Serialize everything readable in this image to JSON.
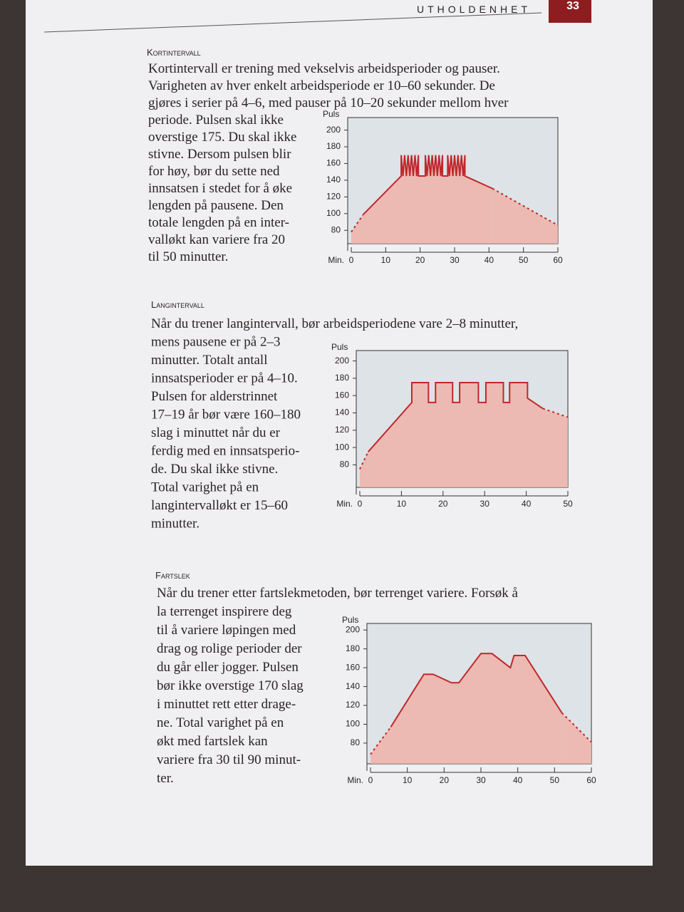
{
  "header": {
    "section": "UTHOLDENHET",
    "page": "33"
  },
  "sections": [
    {
      "heading": "Kortintervall",
      "full_lines": [
        "Kortintervall er trening med vekselvis arbeidsperioder og pauser.",
        "Varigheten av hver enkelt arbeidsperiode er 10–60 sekunder. De",
        "gjøres i serier på 4–6, med pauser på 10–20 sekunder mellom hver"
      ],
      "side_lines": [
        "periode. Pulsen skal ikke",
        "overstige 175. Du skal ikke",
        "stivne. Dersom pulsen blir",
        "for høy, bør du sette ned",
        "innsatsen i stedet for å øke",
        "lengden på pausene. Den",
        "totale lengden på en inter-",
        "valløkt kan variere fra 20",
        "til 50 minutter."
      ],
      "chart": {
        "type": "line",
        "y_label": "Puls",
        "x_label": "Min.",
        "xlim": [
          0,
          60
        ],
        "ylim": [
          64,
          215
        ],
        "xticks": [
          0,
          10,
          20,
          30,
          40,
          50,
          60
        ],
        "yticks": [
          80,
          100,
          120,
          140,
          160,
          180,
          200
        ],
        "fill": "#eeb3a8",
        "background": "#dde3e6",
        "series": [
          {
            "color": "#c0272d",
            "dashed": true,
            "x": [
              0,
              3.5
            ],
            "values": [
              78,
              99
            ]
          },
          {
            "color": "#c0272d",
            "dashed": false,
            "x": [
              3.5,
              14.5,
              14.5,
              15,
              15.5,
              16,
              16.5,
              17,
              17.5,
              18,
              18.5,
              19,
              19.5,
              19.5,
              21.5,
              21.5,
              22,
              22.5,
              23,
              23.5,
              24,
              24.5,
              25,
              25.5,
              26,
              26.5,
              26.5,
              28,
              28,
              28.5,
              29,
              29.5,
              30,
              30.5,
              31,
              31.5,
              32,
              32.5,
              33,
              33,
              41
            ],
            "values": [
              99,
              145,
              170,
              145,
              170,
              145,
              170,
              145,
              170,
              145,
              170,
              145,
              170,
              145,
              145,
              170,
              145,
              170,
              145,
              170,
              145,
              170,
              145,
              170,
              145,
              170,
              145,
              145,
              170,
              145,
              170,
              145,
              170,
              145,
              170,
              145,
              170,
              145,
              170,
              145,
              130
            ]
          },
          {
            "color": "#c0272d",
            "dashed": true,
            "x": [
              41,
              60
            ],
            "values": [
              130,
              86
            ]
          }
        ]
      }
    },
    {
      "heading": "Langintervall",
      "full_lines": [
        "Når du trener langintervall, bør arbeidsperiodene vare 2–8 minutter,"
      ],
      "side_lines": [
        "mens pausene er på 2–3",
        "minutter. Totalt antall",
        "innsatsperioder er på 4–10.",
        "Pulsen for alderstrinnet",
        "17–19 år bør være 160–180",
        "slag i minuttet når du er",
        "ferdig med en innsatsperio-",
        "de. Du skal ikke stivne.",
        "Total varighet på en",
        "langintervalløkt er 15–60",
        "minutter."
      ],
      "chart": {
        "type": "line",
        "y_label": "Puls",
        "x_label": "Min.",
        "xlim": [
          0,
          50
        ],
        "ylim": [
          54,
          212
        ],
        "xticks": [
          0,
          10,
          20,
          30,
          40,
          50
        ],
        "yticks": [
          80,
          100,
          120,
          140,
          160,
          180,
          200
        ],
        "fill": "#eeb3a8",
        "background": "#dde3e6",
        "series": [
          {
            "color": "#c0272d",
            "dashed": true,
            "x": [
              0,
              2
            ],
            "values": [
              75,
              95
            ]
          },
          {
            "color": "#c0272d",
            "dashed": false,
            "x": [
              2,
              12.5,
              12.5,
              16.5,
              16.5,
              18.2,
              18.2,
              22.3,
              22.3,
              24,
              24,
              28.5,
              28.5,
              30.3,
              30.3,
              34.5,
              34.5,
              36,
              36,
              40.3,
              40.3,
              44
            ],
            "values": [
              95,
              152,
              175,
              175,
              152,
              152,
              175,
              175,
              152,
              152,
              175,
              175,
              152,
              152,
              175,
              175,
              152,
              152,
              175,
              175,
              157,
              145
            ]
          },
          {
            "color": "#c0272d",
            "dashed": true,
            "x": [
              44,
              50
            ],
            "values": [
              145,
              135
            ]
          }
        ]
      }
    },
    {
      "heading": "Fartslek",
      "full_lines": [
        "Når du trener etter fartslekmetoden, bør terrenget variere. Forsøk å"
      ],
      "side_lines": [
        "la terrenget inspirere deg",
        "til å variere løpingen med",
        "drag og rolige perioder der",
        "du går eller jogger. Pulsen",
        "bør ikke overstige 170 slag",
        "i minuttet rett etter drage-",
        "ne. Total varighet på en",
        "økt med fartslek kan",
        "variere fra 30 til 90 minut-",
        "ter."
      ],
      "chart": {
        "type": "line",
        "y_label": "Puls",
        "x_label": "Min.",
        "xlim": [
          0,
          60
        ],
        "ylim": [
          58,
          207
        ],
        "xticks": [
          0,
          10,
          20,
          30,
          40,
          50,
          60
        ],
        "yticks": [
          80,
          100,
          120,
          140,
          160,
          180,
          200
        ],
        "fill": "#eeb3a8",
        "background": "#dde3e6",
        "series": [
          {
            "color": "#c0272d",
            "dashed": true,
            "x": [
              0,
              5.5
            ],
            "values": [
              68,
              97
            ]
          },
          {
            "color": "#c0272d",
            "dashed": false,
            "x": [
              5.5,
              14.5,
              17,
              22,
              24,
              30,
              33,
              38,
              39,
              42,
              52
            ],
            "values": [
              97,
              153,
              153,
              144,
              144,
              175,
              175,
              160,
              173,
              173,
              112
            ]
          },
          {
            "color": "#c0272d",
            "dashed": true,
            "x": [
              52,
              60
            ],
            "values": [
              112,
              81
            ]
          }
        ]
      }
    }
  ]
}
